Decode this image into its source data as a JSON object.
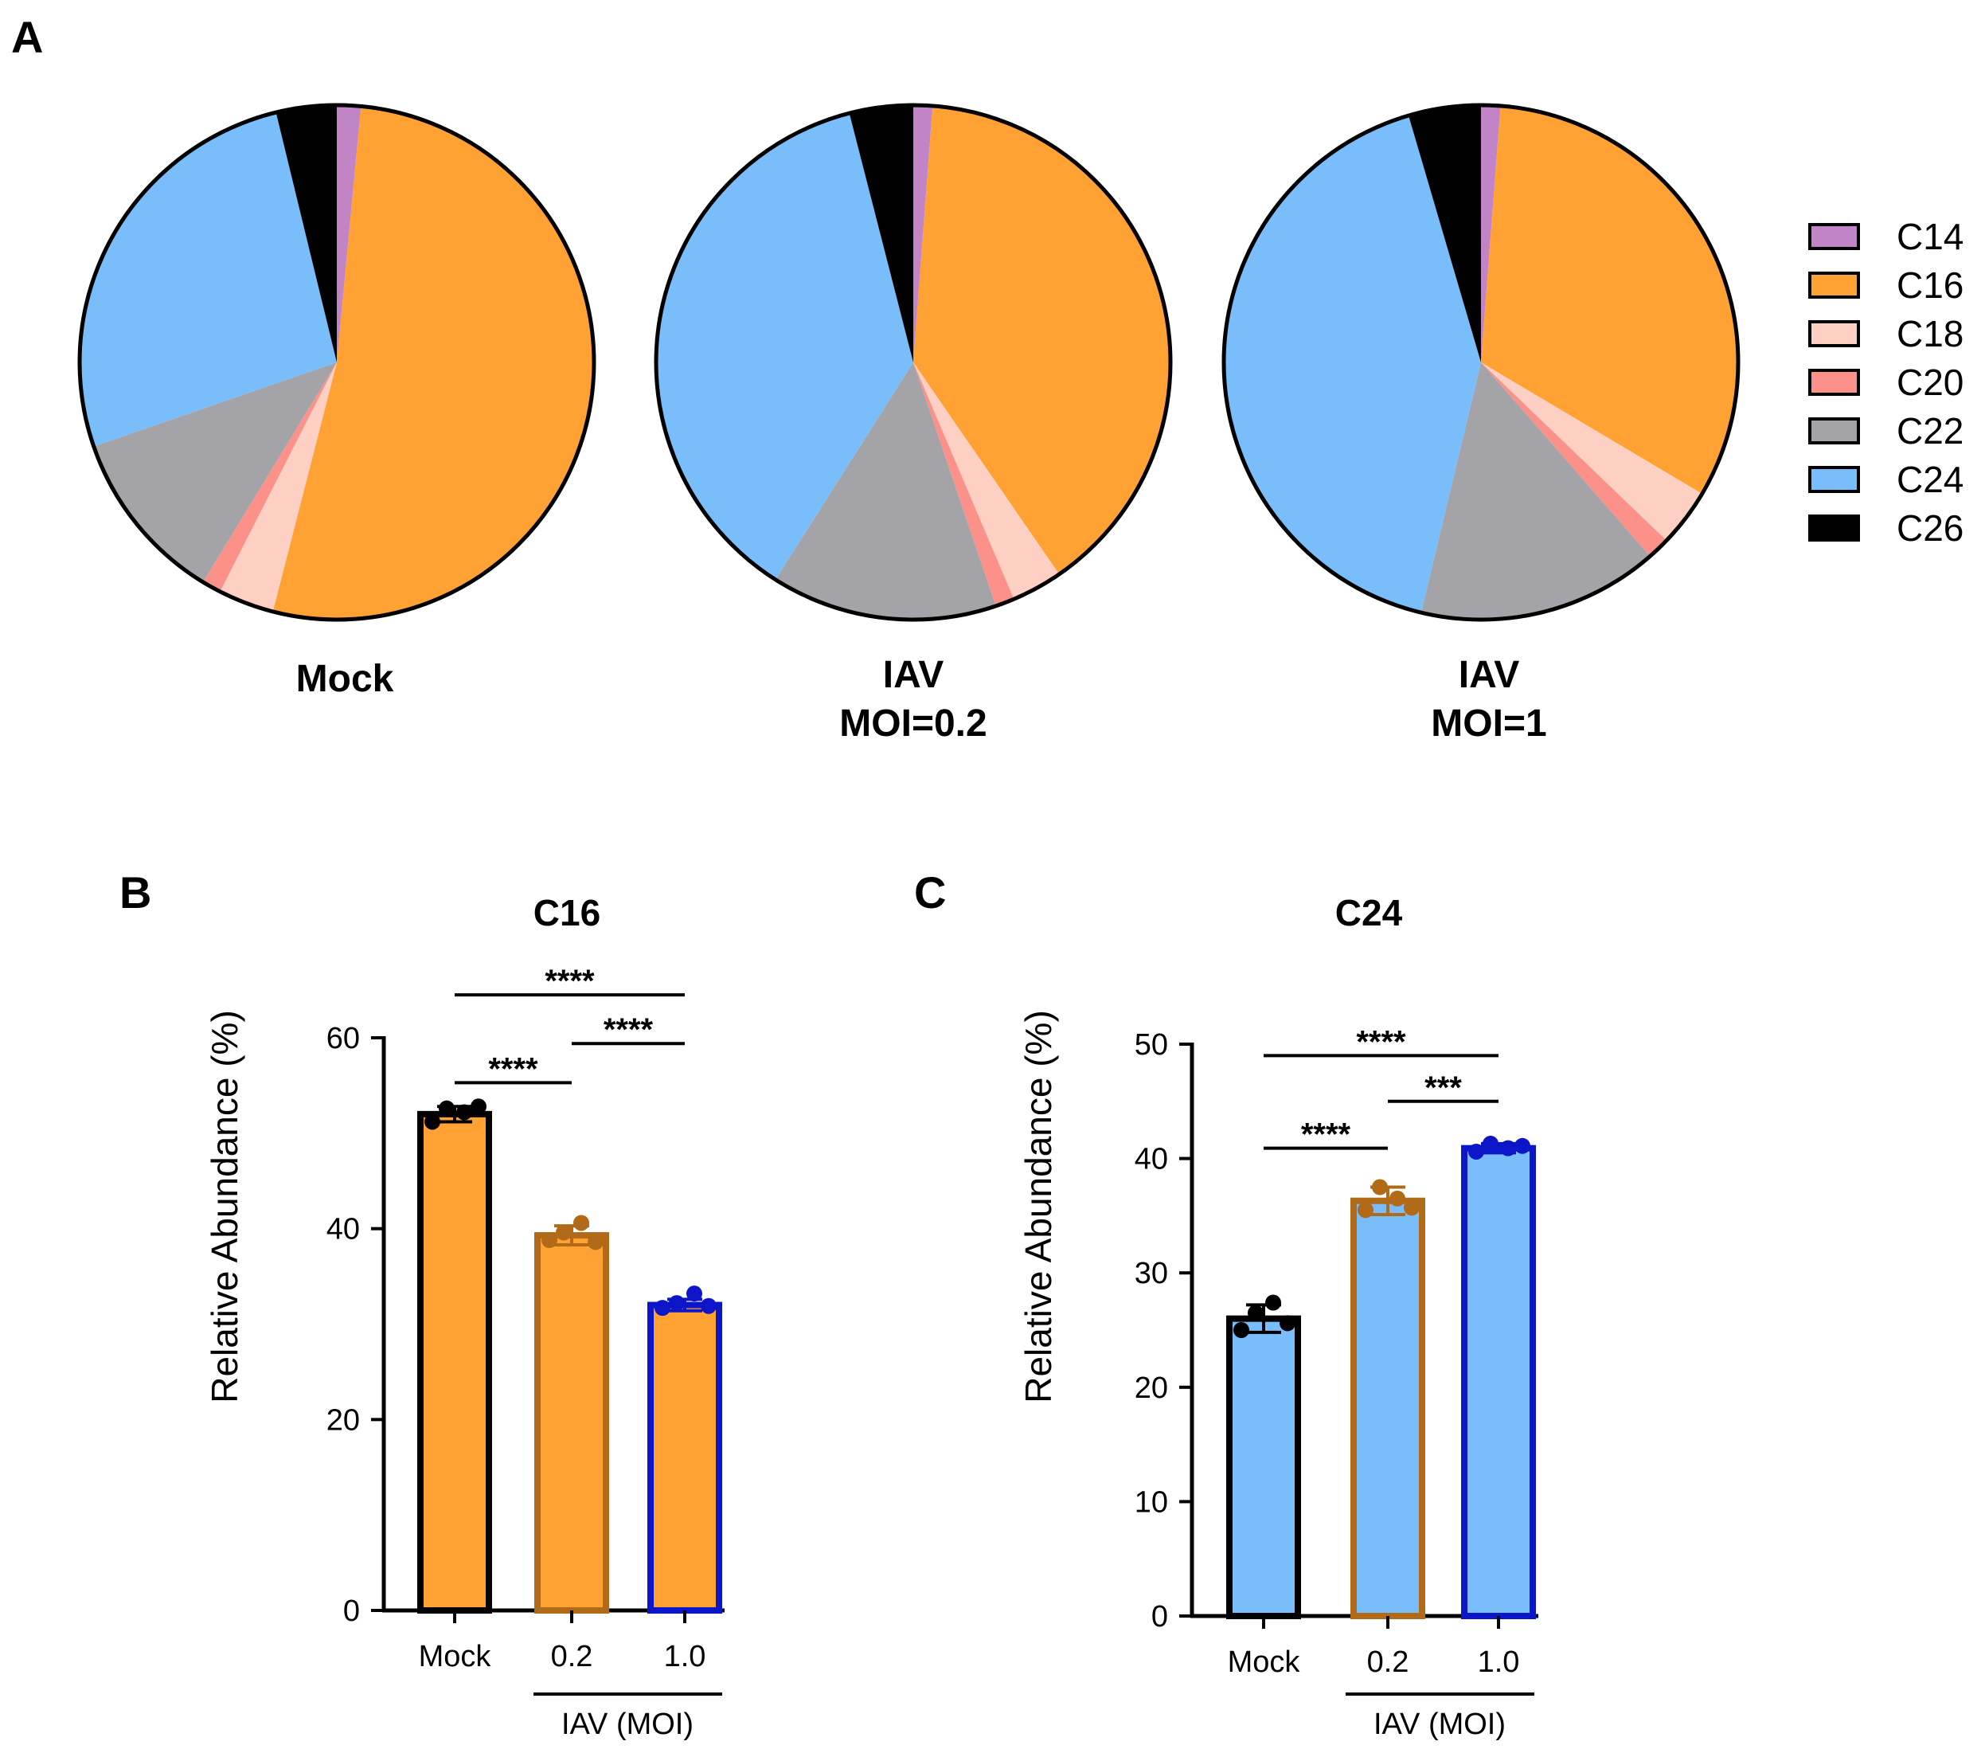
{
  "panels": {
    "a": "A",
    "b": "B",
    "c": "C"
  },
  "colors": {
    "C14": "#c084c7",
    "C16": "#ffa233",
    "C18": "#fdd0c3",
    "C20": "#fb9188",
    "C22": "#a4a4a8",
    "C24": "#79bdfa",
    "C26": "#000000",
    "mock": "#000000",
    "moi02": "#b06a18",
    "moi1": "#0c16c8"
  },
  "pies": [
    {
      "label_line1": "Mock",
      "label_line2": "",
      "slices": [
        1.5,
        52.5,
        3.5,
        1.2,
        11.0,
        26.5,
        3.8
      ]
    },
    {
      "label_line1": "IAV",
      "label_line2": "MOI=0.2",
      "slices": [
        1.2,
        39.2,
        3.2,
        1.2,
        14.2,
        37.0,
        4.0
      ]
    },
    {
      "label_line1": "IAV",
      "label_line2": "MOI=1",
      "slices": [
        1.2,
        32.0,
        3.6,
        1.4,
        15.0,
        41.3,
        4.5
      ]
    }
  ],
  "legend": [
    {
      "key": "C14",
      "label": "C14"
    },
    {
      "key": "C16",
      "label": "C16"
    },
    {
      "key": "C18",
      "label": "C18"
    },
    {
      "key": "C20",
      "label": "C20"
    },
    {
      "key": "C22",
      "label": "C22"
    },
    {
      "key": "C24",
      "label": "C24"
    },
    {
      "key": "C26",
      "label": "C26"
    }
  ],
  "chart_data": [
    {
      "type": "pie",
      "panel": "A",
      "categories": [
        "C14",
        "C16",
        "C18",
        "C20",
        "C22",
        "C24",
        "C26"
      ],
      "series": [
        {
          "name": "Mock",
          "values": [
            1.5,
            52.5,
            3.5,
            1.2,
            11.0,
            26.5,
            3.8
          ]
        },
        {
          "name": "IAV MOI=0.2",
          "values": [
            1.2,
            39.2,
            3.2,
            1.2,
            14.2,
            37.0,
            4.0
          ]
        },
        {
          "name": "IAV MOI=1",
          "values": [
            1.2,
            32.0,
            3.6,
            1.4,
            15.0,
            41.3,
            4.5
          ]
        }
      ]
    },
    {
      "type": "bar",
      "panel": "B",
      "title": "C16",
      "ylabel": "Relative Abundance (%)",
      "xlabel": "IAV (MOI)",
      "ylim": [
        0,
        60
      ],
      "yticks": [
        0,
        20,
        40,
        60
      ],
      "categories": [
        "Mock",
        "0.2",
        "1.0"
      ],
      "values": [
        52,
        39.3,
        32
      ],
      "errors": [
        0.8,
        1.0,
        0.6
      ],
      "points": [
        [
          51.2,
          52.6,
          52.2,
          52.8
        ],
        [
          38.8,
          39.6,
          40.6,
          38.6
        ],
        [
          31.7,
          32.2,
          33.2,
          31.9
        ]
      ],
      "fill_key": "C16",
      "edge_keys": [
        "mock",
        "moi02",
        "moi1"
      ],
      "significance": [
        {
          "from": 0,
          "to": 1,
          "y": 55.3,
          "label": "****"
        },
        {
          "from": 1,
          "to": 2,
          "y": 59.4,
          "label": "****"
        },
        {
          "from": 0,
          "to": 2,
          "y": 64.5,
          "label": "****"
        }
      ]
    },
    {
      "type": "bar",
      "panel": "C",
      "title": "C24",
      "ylabel": "Relative Abundance (%)",
      "xlabel": "IAV (MOI)",
      "ylim": [
        0,
        50
      ],
      "yticks": [
        0,
        10,
        20,
        30,
        40,
        50
      ],
      "categories": [
        "Mock",
        "0.2",
        "1.0"
      ],
      "values": [
        26,
        36.3,
        40.9
      ],
      "errors": [
        1.2,
        1.2,
        0.4
      ],
      "points": [
        [
          25.0,
          26.5,
          27.4,
          25.6
        ],
        [
          35.5,
          37.5,
          36.5,
          35.7
        ],
        [
          40.6,
          41.3,
          40.9,
          41.1
        ]
      ],
      "fill_key": "C24",
      "edge_keys": [
        "mock",
        "moi02",
        "moi1"
      ],
      "significance": [
        {
          "from": 0,
          "to": 1,
          "y": 40.9,
          "label": "****"
        },
        {
          "from": 1,
          "to": 2,
          "y": 45.0,
          "label": "***"
        },
        {
          "from": 0,
          "to": 2,
          "y": 49.0,
          "label": "****"
        }
      ]
    }
  ]
}
